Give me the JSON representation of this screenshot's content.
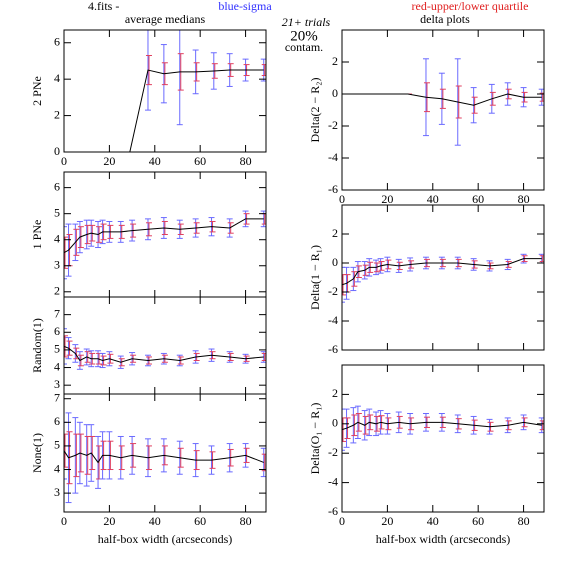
{
  "header": {
    "file": "4.fits  -",
    "blue": "blue-sigma",
    "red": "red-upper/lower quartile",
    "left_title": "average medians",
    "right_title": "delta plots",
    "trials": "21+ trials",
    "contam_pct": "20%",
    "contam": "contam."
  },
  "chart_data": [
    {
      "type": "line",
      "ylabel": "2 PNe",
      "color": "#000000",
      "sigma_color": "#6a6aff",
      "quartile_color": "#e04060",
      "xlim": [
        0,
        89
      ],
      "xticks": [
        0,
        20,
        40,
        60,
        80
      ],
      "xtick_labels": true,
      "ylim": [
        0,
        6.7
      ],
      "yticks": [
        0,
        2,
        4,
        6
      ],
      "x": [
        0,
        29,
        37,
        44,
        51,
        58,
        66,
        73,
        80,
        88
      ],
      "values": [
        0,
        0,
        4.5,
        4.3,
        4.4,
        4.4,
        4.45,
        4.5,
        4.5,
        4.5
      ],
      "sigma": [
        0,
        0,
        2.2,
        1.6,
        2.9,
        1.2,
        1.0,
        0.9,
        0.6,
        0.6
      ],
      "q_err": [
        0,
        0,
        0.8,
        0.6,
        1.0,
        0.5,
        0.4,
        0.35,
        0.3,
        0.3
      ]
    },
    {
      "type": "line",
      "ylabel": "1 PNe",
      "color": "#000000",
      "sigma_color": "#6a6aff",
      "quartile_color": "#e04060",
      "xlim": [
        0,
        89
      ],
      "xticks": [
        0,
        20,
        40,
        60,
        80
      ],
      "xtick_labels": false,
      "ylim": [
        1.8,
        6.6
      ],
      "yticks": [
        2,
        3,
        4,
        5,
        6
      ],
      "x": [
        0,
        2,
        5,
        7,
        10,
        12,
        15,
        17,
        20,
        25,
        30,
        37,
        44,
        51,
        58,
        65,
        73,
        80,
        88
      ],
      "values": [
        3.5,
        3.6,
        3.9,
        4.1,
        4.2,
        4.25,
        4.2,
        4.3,
        4.3,
        4.3,
        4.35,
        4.4,
        4.45,
        4.4,
        4.45,
        4.5,
        4.45,
        4.8,
        4.8
      ],
      "sigma": [
        1.0,
        1.0,
        0.7,
        0.6,
        0.55,
        0.5,
        0.5,
        0.45,
        0.4,
        0.4,
        0.4,
        0.4,
        0.4,
        0.35,
        0.35,
        0.35,
        0.35,
        0.3,
        0.3
      ],
      "q_err": [
        0.6,
        0.6,
        0.5,
        0.4,
        0.35,
        0.3,
        0.3,
        0.3,
        0.25,
        0.25,
        0.25,
        0.25,
        0.25,
        0.2,
        0.2,
        0.2,
        0.2,
        0.2,
        0.2
      ]
    },
    {
      "type": "line",
      "ylabel": "Random(1)",
      "color": "#000000",
      "sigma_color": "#6a6aff",
      "quartile_color": "#e04060",
      "xlim": [
        0,
        89
      ],
      "xticks": [
        0,
        20,
        40,
        60,
        80
      ],
      "xtick_labels": false,
      "ylim": [
        2.5,
        8
      ],
      "yticks": [
        3,
        4,
        5,
        6,
        7
      ],
      "x": [
        0,
        2,
        5,
        7,
        10,
        12,
        15,
        17,
        20,
        25,
        30,
        37,
        44,
        51,
        58,
        65,
        73,
        80,
        88
      ],
      "values": [
        5.2,
        5.1,
        4.8,
        4.4,
        4.6,
        4.5,
        4.5,
        4.4,
        4.5,
        4.3,
        4.5,
        4.4,
        4.5,
        4.4,
        4.6,
        4.7,
        4.6,
        4.5,
        4.6
      ],
      "sigma": [
        1.0,
        0.6,
        0.5,
        0.5,
        0.45,
        0.45,
        0.45,
        0.4,
        0.4,
        0.35,
        0.35,
        0.3,
        0.3,
        0.3,
        0.35,
        0.35,
        0.3,
        0.25,
        0.3
      ],
      "q_err": [
        0.6,
        0.4,
        0.3,
        0.3,
        0.3,
        0.3,
        0.3,
        0.25,
        0.25,
        0.2,
        0.2,
        0.2,
        0.2,
        0.2,
        0.2,
        0.2,
        0.2,
        0.15,
        0.2
      ]
    },
    {
      "type": "line",
      "ylabel": "None(1)",
      "xlabel": "half-box width (arcseconds)",
      "color": "#000000",
      "sigma_color": "#6a6aff",
      "quartile_color": "#e04060",
      "xlim": [
        0,
        89
      ],
      "xticks": [
        0,
        20,
        40,
        60,
        80
      ],
      "xtick_labels": true,
      "ylim": [
        2.2,
        7.2
      ],
      "yticks": [
        3,
        4,
        5,
        6,
        7
      ],
      "x": [
        0,
        2,
        5,
        7,
        10,
        12,
        15,
        17,
        20,
        25,
        30,
        37,
        44,
        51,
        58,
        65,
        73,
        80,
        88
      ],
      "values": [
        4.8,
        4.5,
        4.6,
        4.7,
        4.6,
        4.7,
        4.3,
        4.6,
        4.6,
        4.5,
        4.6,
        4.5,
        4.6,
        4.5,
        4.4,
        4.4,
        4.5,
        4.6,
        4.3
      ],
      "sigma": [
        1.2,
        1.9,
        1.6,
        1.3,
        1.3,
        1.2,
        1.1,
        1.0,
        1.0,
        0.9,
        0.8,
        0.8,
        0.7,
        0.7,
        0.7,
        0.6,
        0.6,
        0.5,
        0.6
      ],
      "q_err": [
        0.7,
        1.1,
        0.9,
        0.8,
        0.8,
        0.7,
        0.7,
        0.6,
        0.6,
        0.5,
        0.5,
        0.5,
        0.4,
        0.4,
        0.4,
        0.35,
        0.35,
        0.3,
        0.35
      ]
    },
    {
      "type": "line",
      "ylabel": "Delta(2 − R₂)",
      "color": "#000000",
      "sigma_color": "#6a6aff",
      "quartile_color": "#e04060",
      "xlim": [
        0,
        89
      ],
      "xticks": [
        0,
        20,
        40,
        60,
        80
      ],
      "xtick_labels": true,
      "ylim": [
        -6,
        4
      ],
      "yticks": [
        -6,
        -4,
        -2,
        0,
        2
      ],
      "x": [
        0,
        29,
        37,
        44,
        51,
        58,
        66,
        73,
        80,
        88
      ],
      "values": [
        0,
        0,
        -0.2,
        -0.3,
        -0.5,
        -0.7,
        -0.3,
        0,
        -0.2,
        -0.2
      ],
      "sigma": [
        0,
        0,
        2.4,
        1.6,
        2.7,
        1.1,
        0.9,
        0.7,
        0.6,
        0.5
      ],
      "q_err": [
        0,
        0,
        0.9,
        0.6,
        1.0,
        0.5,
        0.4,
        0.3,
        0.3,
        0.25
      ]
    },
    {
      "type": "line",
      "ylabel": "Delta(1 − R₁)",
      "color": "#000000",
      "sigma_color": "#6a6aff",
      "quartile_color": "#e04060",
      "xlim": [
        0,
        89
      ],
      "xticks": [
        0,
        20,
        40,
        60,
        80
      ],
      "xtick_labels": false,
      "ylim": [
        -6,
        4
      ],
      "yticks": [
        -6,
        -4,
        -2,
        0,
        2
      ],
      "x": [
        0,
        2,
        5,
        7,
        10,
        12,
        15,
        17,
        20,
        25,
        30,
        37,
        44,
        51,
        58,
        65,
        73,
        80,
        88
      ],
      "values": [
        -1.5,
        -1.4,
        -1.1,
        -0.6,
        -0.5,
        -0.3,
        -0.3,
        -0.2,
        -0.1,
        -0.2,
        -0.1,
        0,
        0,
        0,
        -0.1,
        -0.2,
        -0.1,
        0.3,
        0.3
      ],
      "sigma": [
        1.2,
        1.1,
        0.8,
        0.7,
        0.6,
        0.6,
        0.5,
        0.5,
        0.5,
        0.45,
        0.45,
        0.4,
        0.4,
        0.4,
        0.4,
        0.35,
        0.35,
        0.3,
        0.3
      ],
      "q_err": [
        0.7,
        0.6,
        0.5,
        0.4,
        0.35,
        0.35,
        0.3,
        0.3,
        0.3,
        0.25,
        0.25,
        0.25,
        0.25,
        0.25,
        0.25,
        0.2,
        0.2,
        0.2,
        0.2
      ]
    },
    {
      "type": "line",
      "ylabel": "Delta(O₁ − R₁)",
      "xlabel": "half-box width (arcseconds)",
      "color": "#000000",
      "sigma_color": "#6a6aff",
      "quartile_color": "#e04060",
      "xlim": [
        0,
        89
      ],
      "xticks": [
        0,
        20,
        40,
        60,
        80
      ],
      "xtick_labels": true,
      "ylim": [
        -6,
        4
      ],
      "yticks": [
        -6,
        -4,
        -2,
        0,
        2
      ],
      "x": [
        0,
        2,
        5,
        7,
        10,
        12,
        15,
        17,
        20,
        25,
        30,
        37,
        44,
        51,
        58,
        65,
        73,
        80,
        88
      ],
      "values": [
        -0.4,
        -0.3,
        -0.1,
        0.1,
        -0.1,
        0.1,
        0,
        0.1,
        0,
        0.1,
        0,
        0.1,
        0.1,
        0,
        -0.1,
        -0.2,
        -0.1,
        0.1,
        -0.1
      ],
      "sigma": [
        1.4,
        1.3,
        1.2,
        1.1,
        1.0,
        0.9,
        0.8,
        0.8,
        0.7,
        0.7,
        0.7,
        0.6,
        0.6,
        0.6,
        0.6,
        0.5,
        0.5,
        0.5,
        0.5
      ],
      "q_err": [
        0.8,
        0.7,
        0.7,
        0.6,
        0.6,
        0.5,
        0.5,
        0.45,
        0.4,
        0.4,
        0.4,
        0.35,
        0.35,
        0.35,
        0.35,
        0.3,
        0.3,
        0.3,
        0.3
      ]
    }
  ]
}
